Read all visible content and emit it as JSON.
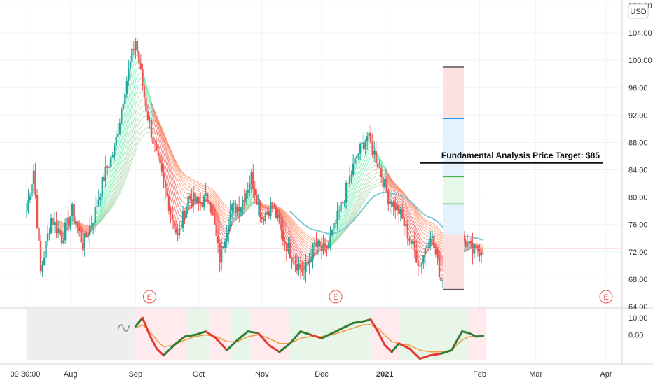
{
  "chart_data": {
    "type": "candlestick",
    "currency_label": "USD",
    "main": {
      "ylim": [
        64,
        108
      ],
      "y_ticks": [
        "108.00",
        "104.00",
        "100.00",
        "96.00",
        "92.00",
        "88.00",
        "84.00",
        "80.00",
        "76.00",
        "72.00",
        "68.00",
        "64.00"
      ],
      "last_price": 72.5,
      "annotation": {
        "text": "Fundamental Analysis Price Target: $85",
        "price": 85
      },
      "earnings_marker_label": "E",
      "earnings_markers": [
        "Sep",
        "Dec",
        "Apr"
      ],
      "target_box": {
        "top": 99,
        "bottom": 66.5,
        "lines": [
          91.5,
          83,
          79
        ]
      },
      "price_path": [
        [
          0,
          78
        ],
        [
          4,
          84
        ],
        [
          8,
          69
        ],
        [
          14,
          77
        ],
        [
          20,
          74
        ],
        [
          26,
          78
        ],
        [
          32,
          73
        ],
        [
          38,
          77
        ],
        [
          44,
          83
        ],
        [
          50,
          87
        ],
        [
          56,
          96
        ],
        [
          62,
          103
        ],
        [
          68,
          93
        ],
        [
          74,
          86
        ],
        [
          80,
          80
        ],
        [
          86,
          74
        ],
        [
          92,
          80
        ],
        [
          98,
          79
        ],
        [
          104,
          80
        ],
        [
          110,
          71
        ],
        [
          116,
          78
        ],
        [
          122,
          79
        ],
        [
          128,
          83
        ],
        [
          134,
          77
        ],
        [
          140,
          79
        ],
        [
          146,
          74
        ],
        [
          152,
          71
        ],
        [
          158,
          69
        ],
        [
          164,
          73
        ],
        [
          170,
          72
        ],
        [
          176,
          76
        ],
        [
          182,
          81
        ],
        [
          188,
          86
        ],
        [
          194,
          89
        ],
        [
          200,
          85
        ],
        [
          206,
          80
        ],
        [
          212,
          78
        ],
        [
          218,
          74
        ],
        [
          224,
          70
        ],
        [
          230,
          75
        ],
        [
          236,
          68
        ],
        [
          242,
          71
        ],
        [
          248,
          74
        ],
        [
          254,
          72
        ],
        [
          260,
          72.5
        ]
      ]
    },
    "oscillator": {
      "ylim": [
        -15,
        15
      ],
      "y_ticks": [
        "10.00",
        "0.00"
      ],
      "fast": [
        [
          62,
          5
        ],
        [
          66,
          10
        ],
        [
          70,
          0
        ],
        [
          74,
          -8
        ],
        [
          78,
          -12
        ],
        [
          84,
          -6
        ],
        [
          90,
          -1
        ],
        [
          96,
          0
        ],
        [
          102,
          2
        ],
        [
          108,
          -2
        ],
        [
          114,
          -9
        ],
        [
          120,
          -3
        ],
        [
          126,
          2
        ],
        [
          132,
          1
        ],
        [
          138,
          -6
        ],
        [
          144,
          -10
        ],
        [
          150,
          -5
        ],
        [
          156,
          2
        ],
        [
          162,
          0
        ],
        [
          168,
          -2
        ],
        [
          174,
          1
        ],
        [
          180,
          4
        ],
        [
          186,
          7
        ],
        [
          192,
          8
        ],
        [
          196,
          9
        ],
        [
          200,
          2
        ],
        [
          204,
          -6
        ],
        [
          208,
          -10
        ],
        [
          212,
          -5
        ],
        [
          218,
          -8
        ],
        [
          224,
          -14
        ],
        [
          230,
          -12
        ],
        [
          236,
          -11
        ],
        [
          242,
          -9
        ],
        [
          248,
          2
        ],
        [
          252,
          1
        ],
        [
          256,
          -1
        ],
        [
          260,
          -0.5
        ]
      ],
      "slow": [
        [
          62,
          4
        ],
        [
          66,
          6
        ],
        [
          70,
          2
        ],
        [
          74,
          -3
        ],
        [
          78,
          -7
        ],
        [
          84,
          -6
        ],
        [
          90,
          -3
        ],
        [
          96,
          -1
        ],
        [
          102,
          0
        ],
        [
          108,
          -1
        ],
        [
          114,
          -4
        ],
        [
          120,
          -4
        ],
        [
          126,
          -1
        ],
        [
          132,
          0
        ],
        [
          138,
          -2
        ],
        [
          144,
          -5
        ],
        [
          150,
          -5
        ],
        [
          156,
          -2
        ],
        [
          162,
          -1
        ],
        [
          168,
          -1
        ],
        [
          174,
          0
        ],
        [
          180,
          2
        ],
        [
          186,
          4
        ],
        [
          192,
          6
        ],
        [
          196,
          6
        ],
        [
          200,
          4
        ],
        [
          204,
          0
        ],
        [
          208,
          -4
        ],
        [
          212,
          -5
        ],
        [
          218,
          -6
        ],
        [
          224,
          -9
        ],
        [
          230,
          -10
        ],
        [
          236,
          -10
        ],
        [
          242,
          -9
        ],
        [
          248,
          -3
        ],
        [
          252,
          -1
        ],
        [
          256,
          -1
        ],
        [
          260,
          -0.5
        ]
      ],
      "band_ranges": [
        {
          "start": 0,
          "end": 62,
          "state": "neutral"
        },
        {
          "start": 62,
          "end": 92,
          "state": "bearish"
        },
        {
          "start": 92,
          "end": 104,
          "state": "bullish"
        },
        {
          "start": 104,
          "end": 116,
          "state": "bearish"
        },
        {
          "start": 116,
          "end": 128,
          "state": "bullish"
        },
        {
          "start": 128,
          "end": 150,
          "state": "bearish"
        },
        {
          "start": 150,
          "end": 196,
          "state": "bullish"
        },
        {
          "start": 196,
          "end": 212,
          "state": "bearish"
        },
        {
          "start": 212,
          "end": 252,
          "state": "bullish"
        },
        {
          "start": 252,
          "end": 262,
          "state": "bearish"
        }
      ]
    },
    "x_axis": {
      "range": [
        0,
        330
      ],
      "labels": [
        {
          "label": "09:30:00",
          "x": 0
        },
        {
          "label": "Aug",
          "x": 25
        },
        {
          "label": "Sep",
          "x": 62
        },
        {
          "label": "Oct",
          "x": 98
        },
        {
          "label": "Nov",
          "x": 134
        },
        {
          "label": "Dec",
          "x": 168
        },
        {
          "label": "2021",
          "x": 204
        },
        {
          "label": "Feb",
          "x": 258
        },
        {
          "label": "Mar",
          "x": 290
        },
        {
          "label": "Apr",
          "x": 330
        }
      ]
    },
    "colors": {
      "up": "#26a69a",
      "down": "#ef5350",
      "ma_slow": "#80c7d4",
      "osc_fast_up": "#2e7d32",
      "osc_fast_down": "#e53935",
      "osc_slow": "#f39c3c",
      "band_bull": "#e8f5e9",
      "band_bear": "#ffebee",
      "band_neutral": "#eeeeee",
      "earnings": "#ef5350",
      "box_red": "#fde0e0",
      "box_blue": "#e3f2fd",
      "box_green": "#e8f8e8",
      "last_price_line": "#f5b5b5"
    }
  }
}
